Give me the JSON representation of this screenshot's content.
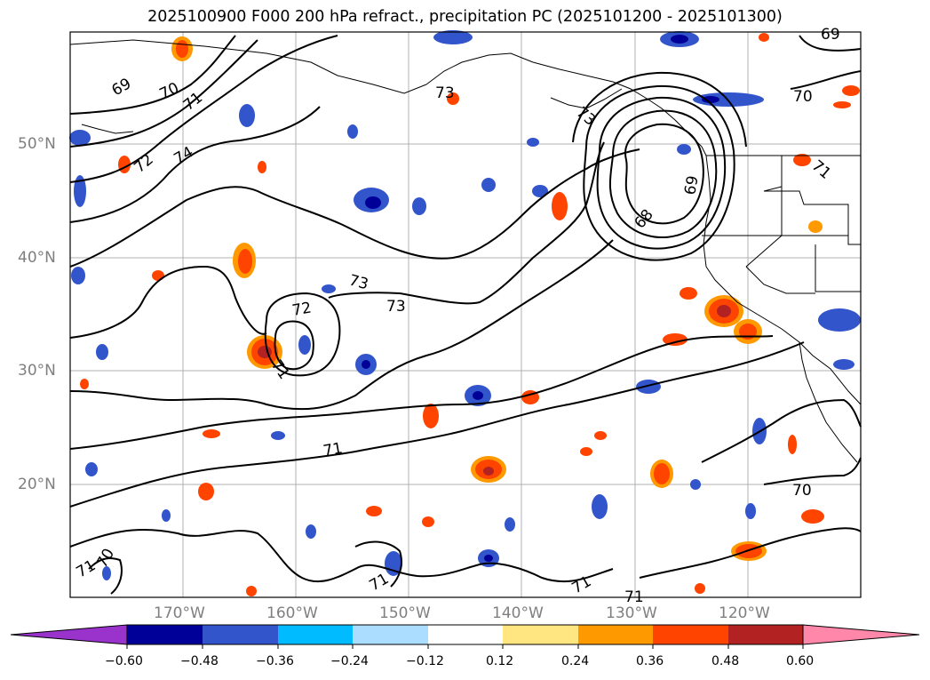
{
  "title": "2025100900 F000 200 hPa refract., precipitation PC (2025101200 - 2025101300)",
  "map": {
    "lat_labels": [
      "50°N",
      "40°N",
      "30°N",
      "20°N"
    ],
    "lon_labels": [
      "170°W",
      "160°W",
      "150°W",
      "140°W",
      "130°W",
      "120°W"
    ],
    "contour_labels": [
      "69",
      "70",
      "71",
      "72",
      "74",
      "73",
      "73",
      "72",
      "71",
      "73",
      "73",
      "68",
      "69",
      "70",
      "71",
      "71",
      "70",
      "71",
      "71",
      "71",
      "71",
      "69",
      "70"
    ]
  },
  "colorbar": {
    "tick_labels": [
      "−0.60",
      "−0.48",
      "−0.36",
      "−0.24",
      "−0.12",
      "0.12",
      "0.24",
      "0.36",
      "0.48",
      "0.60"
    ],
    "colors": [
      "#9933cc",
      "#000099",
      "#3355cc",
      "#00bbff",
      "#aaddff",
      "#ffffff",
      "#ffe680",
      "#ff9900",
      "#ff4400",
      "#b22222",
      "#ff88aa"
    ]
  }
}
